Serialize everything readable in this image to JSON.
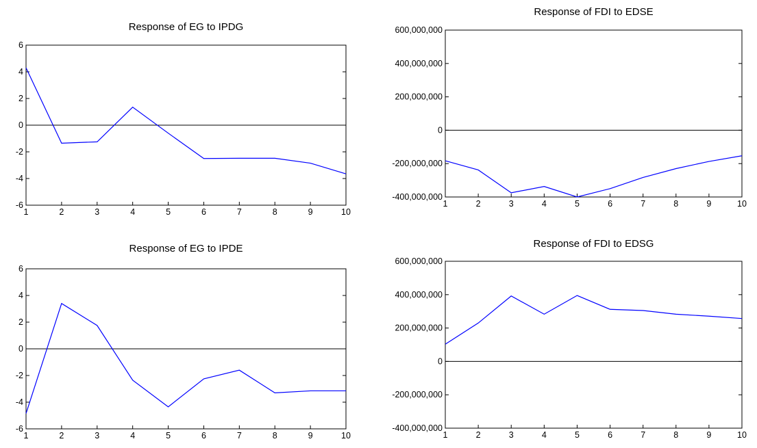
{
  "chart_data": [
    {
      "type": "line",
      "title": "Response of EG to IPDG",
      "x": [
        1,
        2,
        3,
        4,
        5,
        6,
        7,
        8,
        9,
        10
      ],
      "series": [
        {
          "values": [
            4.3,
            -1.35,
            -1.25,
            1.35,
            -0.6,
            -2.5,
            -2.48,
            -2.48,
            -2.85,
            -3.65
          ]
        }
      ],
      "ylim": [
        -6,
        6
      ],
      "yticks": [
        6,
        4,
        2,
        0,
        -2,
        -4,
        -6
      ],
      "ytick_labels": [
        "6",
        "4",
        "2",
        "0",
        "-2",
        "-4",
        "-6"
      ],
      "xtick_labels": [
        "1",
        "2",
        "3",
        "4",
        "5",
        "6",
        "7",
        "8",
        "9",
        "10"
      ],
      "zero_line": true,
      "colors": {
        "line": "#0000ff",
        "zero": "#000000"
      }
    },
    {
      "type": "line",
      "title": "Response of FDI to EDSE",
      "x": [
        1,
        2,
        3,
        4,
        5,
        6,
        7,
        8,
        9,
        10
      ],
      "series": [
        {
          "values": [
            -183000000,
            -238000000,
            -375000000,
            -337000000,
            -400000000,
            -350000000,
            -283000000,
            -230000000,
            -187000000,
            -153000000
          ]
        }
      ],
      "ylim": [
        -400000000,
        600000000
      ],
      "yticks": [
        600000000,
        400000000,
        200000000,
        0,
        -200000000,
        -400000000
      ],
      "ytick_labels": [
        "600,000,000",
        "400,000,000",
        "200,000,000",
        "0",
        "-200,000,000",
        "-400,000,000"
      ],
      "xtick_labels": [
        "1",
        "2",
        "3",
        "4",
        "5",
        "6",
        "7",
        "8",
        "9",
        "10"
      ],
      "zero_line": true,
      "colors": {
        "line": "#0000ff",
        "zero": "#000000"
      }
    },
    {
      "type": "line",
      "title": "Response of EG to IPDE",
      "x": [
        1,
        2,
        3,
        4,
        5,
        6,
        7,
        8,
        9,
        10
      ],
      "series": [
        {
          "values": [
            -4.85,
            3.4,
            1.75,
            -2.35,
            -4.35,
            -2.25,
            -1.6,
            -3.3,
            -3.15,
            -3.15
          ]
        }
      ],
      "ylim": [
        -6,
        6
      ],
      "yticks": [
        6,
        4,
        2,
        0,
        -2,
        -4,
        -6
      ],
      "ytick_labels": [
        "6",
        "4",
        "2",
        "0",
        "-2",
        "-4",
        "-6"
      ],
      "xtick_labels": [
        "1",
        "2",
        "3",
        "4",
        "5",
        "6",
        "7",
        "8",
        "9",
        "10"
      ],
      "zero_line": true,
      "colors": {
        "line": "#0000ff",
        "zero": "#000000"
      }
    },
    {
      "type": "line",
      "title": "Response of FDI to EDSG",
      "x": [
        1,
        2,
        3,
        4,
        5,
        6,
        7,
        8,
        9,
        10
      ],
      "series": [
        {
          "values": [
            103000000,
            230000000,
            392000000,
            283000000,
            395000000,
            312000000,
            305000000,
            283000000,
            271000000,
            257000000
          ]
        }
      ],
      "ylim": [
        -400000000,
        600000000
      ],
      "yticks": [
        600000000,
        400000000,
        200000000,
        0,
        -200000000,
        -400000000
      ],
      "ytick_labels": [
        "600,000,000",
        "400,000,000",
        "200,000,000",
        "0",
        "-200,000,000",
        "-400,000,000"
      ],
      "xtick_labels": [
        "1",
        "2",
        "3",
        "4",
        "5",
        "6",
        "7",
        "8",
        "9",
        "10"
      ],
      "zero_line": true,
      "colors": {
        "line": "#0000ff",
        "zero": "#000000"
      }
    }
  ]
}
